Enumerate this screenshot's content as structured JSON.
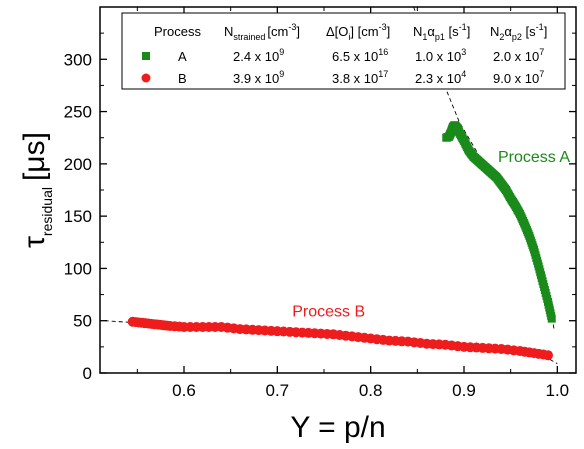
{
  "chart_data": {
    "type": "scatter",
    "xlabel": "Y = p/n",
    "ylabel_main": "τ",
    "ylabel_sub": "residual",
    "ylabel_unit": "[μs]",
    "xlim": [
      0.51,
      1.02
    ],
    "ylim": [
      0,
      350
    ],
    "xticks": [
      0.6,
      0.7,
      0.8,
      0.9,
      1.0
    ],
    "xtick_labels": [
      "0.6",
      "0.7",
      "0.8",
      "0.9",
      "1.0"
    ],
    "yticks": [
      0,
      50,
      100,
      150,
      200,
      250,
      300
    ],
    "ytick_labels": [
      "0",
      "50",
      "100",
      "150",
      "200",
      "250",
      "300"
    ],
    "grid": false,
    "legend_position": "top-right",
    "legend": {
      "header": {
        "process": "Process",
        "n_main": "N",
        "n_sub": "strained",
        "n_unit": "[cm",
        "n_unit_sup": "-3",
        "n_unit_end": "]",
        "o_main": "Δ[O",
        "o_sub": "i",
        "o_unit": "] [cm",
        "o_unit_sup": "-3",
        "o_unit_end": "]",
        "a1_main": "N",
        "a1_sub1": "1",
        "a1_alpha": "α",
        "a1_sub2": "p1",
        "a1_unit": " [s",
        "a1_unit_sup": "-1",
        "a1_unit_end": "]",
        "a2_main": "N",
        "a2_sub1": "2",
        "a2_alpha": "α",
        "a2_sub2": "p2",
        "a2_unit": " [s",
        "a2_unit_sup": "-1",
        "a2_unit_end": "]"
      },
      "rows": [
        {
          "label": "A",
          "marker": "square",
          "color": "#1a8a1a",
          "n_base": "2.4 x 10",
          "n_exp": "9",
          "o_base": "6.5 x 10",
          "o_exp": "16",
          "a1_base": "1.0 x 10",
          "a1_exp": "3",
          "a2_base": "2.0 x 10",
          "a2_exp": "7"
        },
        {
          "label": "B",
          "marker": "circle",
          "color": "#ee1c1c",
          "n_base": "3.9 x 10",
          "n_exp": "9",
          "o_base": "3.8 x 10",
          "o_exp": "17",
          "a1_base": "2.3 x 10",
          "a1_exp": "4",
          "a2_base": "9.0 x 10",
          "a2_exp": "7"
        }
      ]
    },
    "annotations": [
      {
        "text": "Process A",
        "color": "#1a8a1a",
        "x": 0.975,
        "y": 202
      },
      {
        "text": "Process B",
        "color": "#ee1c1c",
        "x": 0.755,
        "y": 54
      }
    ],
    "series": [
      {
        "name": "A",
        "marker": "square",
        "color": "#1a8a1a",
        "keypoints": [
          [
            0.881,
            225
          ],
          [
            0.884,
            226
          ],
          [
            0.886,
            230
          ],
          [
            0.888,
            235
          ],
          [
            0.89,
            237
          ],
          [
            0.892,
            235
          ],
          [
            0.895,
            230
          ],
          [
            0.9,
            222
          ],
          [
            0.905,
            213
          ],
          [
            0.91,
            207
          ],
          [
            0.915,
            203
          ],
          [
            0.92,
            199
          ],
          [
            0.925,
            195
          ],
          [
            0.93,
            191
          ],
          [
            0.935,
            187
          ],
          [
            0.94,
            181
          ],
          [
            0.945,
            175
          ],
          [
            0.95,
            167
          ],
          [
            0.955,
            160
          ],
          [
            0.96,
            152
          ],
          [
            0.965,
            142
          ],
          [
            0.97,
            131
          ],
          [
            0.975,
            118
          ],
          [
            0.98,
            102
          ],
          [
            0.985,
            85
          ],
          [
            0.99,
            68
          ],
          [
            0.994,
            52
          ]
        ]
      },
      {
        "name": "B",
        "marker": "circle",
        "color": "#ee1c1c",
        "keypoints": [
          [
            0.545,
            49
          ],
          [
            0.555,
            48
          ],
          [
            0.565,
            47
          ],
          [
            0.575,
            46
          ],
          [
            0.585,
            45
          ],
          [
            0.6,
            44
          ],
          [
            0.62,
            44
          ],
          [
            0.64,
            44
          ],
          [
            0.66,
            42
          ],
          [
            0.68,
            41
          ],
          [
            0.7,
            40
          ],
          [
            0.72,
            39
          ],
          [
            0.74,
            38
          ],
          [
            0.76,
            37
          ],
          [
            0.78,
            35
          ],
          [
            0.8,
            33
          ],
          [
            0.82,
            31
          ],
          [
            0.84,
            30
          ],
          [
            0.86,
            28
          ],
          [
            0.88,
            27
          ],
          [
            0.9,
            25
          ],
          [
            0.92,
            24
          ],
          [
            0.94,
            23
          ],
          [
            0.96,
            21
          ],
          [
            0.975,
            19
          ],
          [
            0.99,
            17
          ]
        ]
      }
    ],
    "fit_lines": [
      {
        "name": "fit-A",
        "points": [
          [
            0.846,
            350
          ],
          [
            0.87,
            295
          ],
          [
            0.895,
            240
          ],
          [
            0.92,
            202
          ],
          [
            0.945,
            175
          ],
          [
            0.97,
            133
          ],
          [
            0.99,
            72
          ],
          [
            0.997,
            40
          ]
        ]
      },
      {
        "name": "fit-B",
        "points": [
          [
            0.515,
            50
          ],
          [
            0.6,
            45
          ],
          [
            0.7,
            40
          ],
          [
            0.8,
            33
          ],
          [
            0.9,
            26
          ],
          [
            0.98,
            19
          ],
          [
            1.0,
            9
          ]
        ]
      }
    ]
  }
}
